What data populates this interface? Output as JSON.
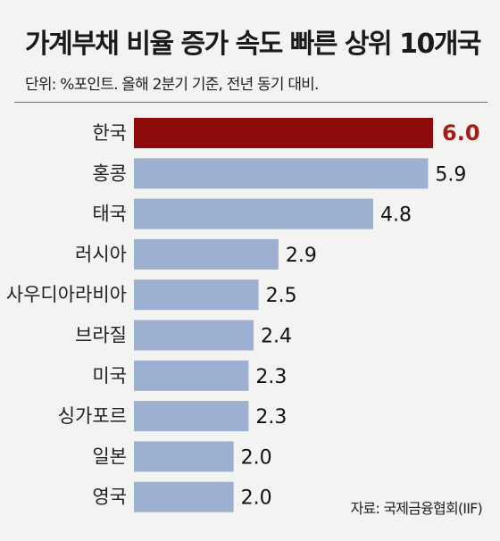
{
  "header": {
    "title": "가계부채 비율 증가 속도 빠른 상위 10개국",
    "subtitle": "단위: %포인트. 올해 2분기 기준, 전년 동기 대비."
  },
  "source": "자료: 국제금융협회(IIF)",
  "colors": {
    "highlight": "#8f0b0b",
    "bar": "#9db0cf",
    "highlight_text": "#a01d18"
  },
  "chart_data": {
    "type": "bar",
    "orientation": "horizontal",
    "title": "가계부채 비율 증가 속도 빠른 상위 10개국",
    "subtitle": "단위: %포인트. 올해 2분기 기준, 전년 동기 대비.",
    "categories": [
      "한국",
      "홍콩",
      "태국",
      "러시아",
      "사우디아라비아",
      "브라질",
      "미국",
      "싱가포르",
      "일본",
      "영국"
    ],
    "values": [
      6.0,
      5.9,
      4.8,
      2.9,
      2.5,
      2.4,
      2.3,
      2.3,
      2.0,
      2.0
    ],
    "value_labels": [
      "6.0",
      "5.9",
      "4.8",
      "2.9",
      "2.5",
      "2.4",
      "2.3",
      "2.3",
      "2.0",
      "2.0"
    ],
    "highlight_index": 0,
    "xlim": [
      0,
      6.0
    ],
    "grid": false,
    "legend": "none"
  }
}
